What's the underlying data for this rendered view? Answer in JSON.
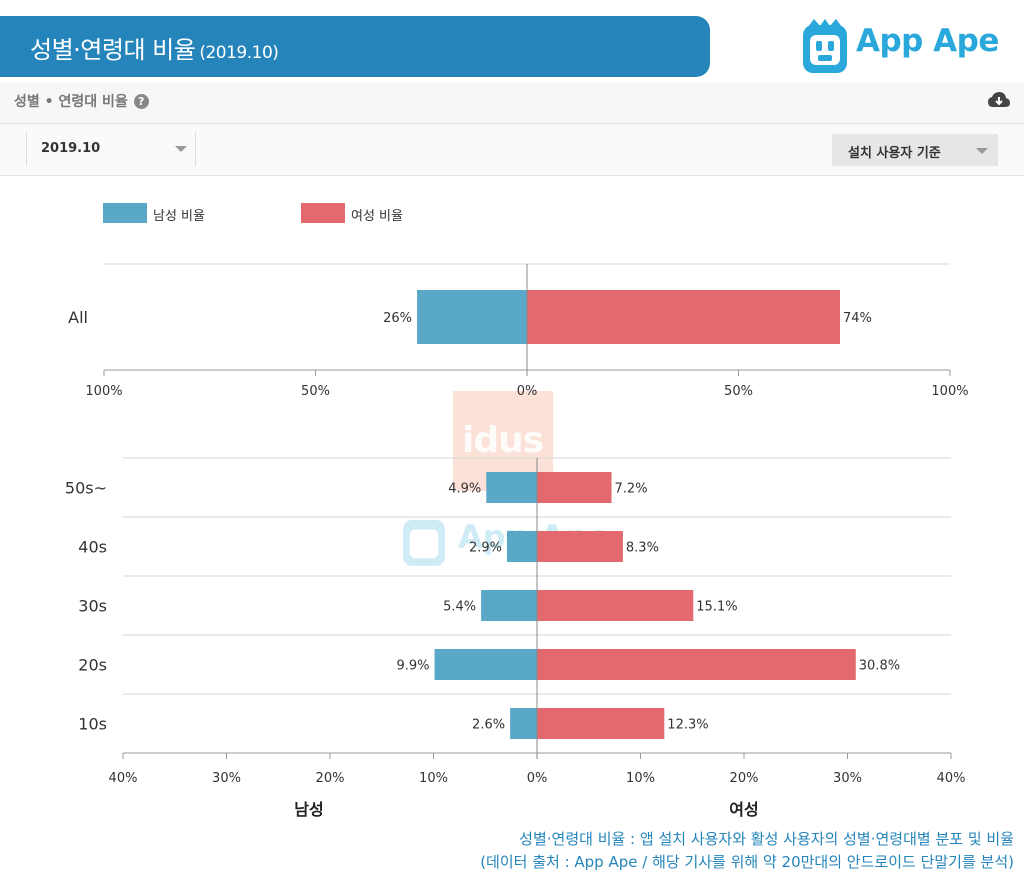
{
  "header": {
    "title": "성별·연령대 비율",
    "period": "(2019.10)",
    "brand": "App Ape"
  },
  "subheader": {
    "label": "성별 • 연령대 비율",
    "help_icon": "question-circle-icon",
    "download_icon": "cloud-download-icon"
  },
  "filters": {
    "period_value": "2019.10",
    "basis_value": "설치 사용자 기준"
  },
  "legend": {
    "male_label": "남성 비율",
    "female_label": "여성 비율"
  },
  "colors": {
    "male": "#5aa8c8",
    "female": "#e3696e",
    "header_bg": "#2585bb",
    "brand": "#2aa7db"
  },
  "watermarks": {
    "idus": "idus",
    "appape": "App Ape"
  },
  "chart_data": [
    {
      "type": "bar",
      "orientation": "horizontal-diverging",
      "categories": [
        "All"
      ],
      "series": [
        {
          "name": "남성 비율",
          "values": [
            26
          ],
          "labels": [
            "26%"
          ]
        },
        {
          "name": "여성 비율",
          "values": [
            74
          ],
          "labels": [
            "74%"
          ]
        }
      ],
      "xlim": [
        -100,
        100
      ],
      "xticks": [
        "100%",
        "50%",
        "0%",
        "50%",
        "100%"
      ],
      "grid": true,
      "legend": "top-left"
    },
    {
      "type": "bar",
      "orientation": "horizontal-diverging",
      "categories": [
        "50s~",
        "40s",
        "30s",
        "20s",
        "10s"
      ],
      "series": [
        {
          "name": "남성 비율",
          "values": [
            4.9,
            2.9,
            5.4,
            9.9,
            2.6
          ],
          "labels": [
            "4.9%",
            "2.9%",
            "5.4%",
            "9.9%",
            "2.6%"
          ]
        },
        {
          "name": "여성 비율",
          "values": [
            7.2,
            8.3,
            15.1,
            30.8,
            12.3
          ],
          "labels": [
            "7.2%",
            "8.3%",
            "15.1%",
            "30.8%",
            "12.3%"
          ]
        }
      ],
      "xlim": [
        -40,
        40
      ],
      "xticks": [
        "40%",
        "30%",
        "20%",
        "10%",
        "0%",
        "10%",
        "20%",
        "30%",
        "40%"
      ],
      "xlabel_left": "남성",
      "xlabel_right": "여성",
      "grid": true
    }
  ],
  "caption": {
    "line1": "성별·연령대 비율 : 앱 설치 사용자와 활성 사용자의 성별·연령대별 분포 및 비율",
    "line2": "(데이터 출처 : App Ape / 해당 기사를 위해 약 20만대의 안드로이드 단말기를 분석)"
  }
}
